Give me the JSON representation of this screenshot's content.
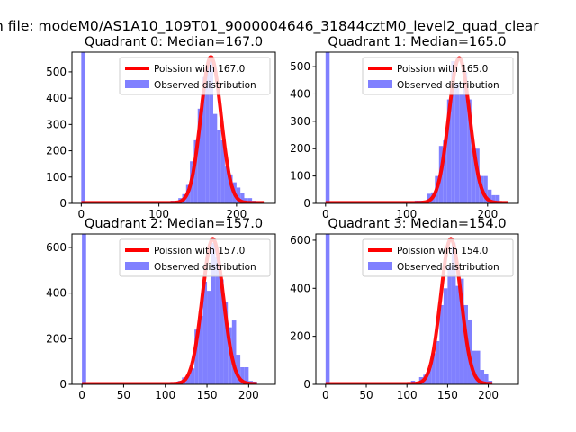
{
  "suptitle": "n file: modeM0/AS1A10_109T01_9000004646_31844cztM0_level2_quad_clear",
  "colors": {
    "poisson": "#ff0000",
    "observed": "#8080ff"
  },
  "chart_data": [
    {
      "type": "bar",
      "title": "Quadrant 0: Median=167.0",
      "xlim": [
        -12,
        250
      ],
      "ylim": [
        0,
        575
      ],
      "xticks": [
        0,
        100,
        200
      ],
      "yticks": [
        0,
        100,
        200,
        300,
        400,
        500
      ],
      "legend": {
        "placement": "top-right",
        "poisson_label": "Poission with 167.0",
        "observed_label": "Observed distribution"
      },
      "poisson_mean": 167.0,
      "poisson_peak": 555,
      "bin_width": 5,
      "bins": [
        0,
        100,
        105,
        110,
        115,
        120,
        125,
        130,
        135,
        140,
        145,
        150,
        155,
        160,
        165,
        170,
        175,
        180,
        185,
        190,
        195,
        200,
        205,
        210,
        215,
        220,
        225,
        230
      ],
      "values": [
        2000,
        3,
        3,
        5,
        10,
        10,
        20,
        35,
        70,
        160,
        240,
        360,
        480,
        520,
        540,
        340,
        280,
        240,
        140,
        110,
        80,
        60,
        40,
        20,
        20,
        10,
        5,
        5
      ]
    },
    {
      "type": "bar",
      "title": "Quadrant 1: Median=165.0",
      "xlim": [
        -12,
        238
      ],
      "ylim": [
        0,
        553
      ],
      "xticks": [
        0,
        100,
        200
      ],
      "yticks": [
        0,
        100,
        200,
        300,
        400,
        500
      ],
      "legend": {
        "placement": "top-right",
        "poisson_label": "Poission with 165.0",
        "observed_label": "Observed distribution"
      },
      "poisson_mean": 165.0,
      "poisson_peak": 530,
      "bin_width": 5,
      "bins": [
        0,
        95,
        100,
        105,
        110,
        115,
        120,
        125,
        130,
        135,
        140,
        145,
        150,
        155,
        160,
        165,
        170,
        175,
        180,
        185,
        190,
        195,
        200,
        205,
        210,
        215,
        220
      ],
      "values": [
        2000,
        5,
        5,
        5,
        10,
        10,
        5,
        35,
        40,
        100,
        210,
        230,
        380,
        520,
        440,
        400,
        480,
        380,
        200,
        200,
        100,
        100,
        50,
        30,
        30,
        5,
        5
      ]
    },
    {
      "type": "bar",
      "title": "Quadrant 2: Median=157.0",
      "xlim": [
        -12,
        232
      ],
      "ylim": [
        0,
        659
      ],
      "xticks": [
        0,
        50,
        100,
        150,
        200
      ],
      "yticks": [
        0,
        200,
        400,
        600
      ],
      "legend": {
        "placement": "top-right",
        "poisson_label": "Poission with 157.0",
        "observed_label": "Observed distribution"
      },
      "poisson_mean": 157.0,
      "poisson_peak": 636,
      "bin_width": 5,
      "bins": [
        0,
        100,
        105,
        110,
        115,
        120,
        125,
        130,
        135,
        140,
        145,
        150,
        155,
        160,
        165,
        170,
        175,
        180,
        185,
        190,
        195,
        200,
        205
      ],
      "values": [
        2000,
        5,
        10,
        10,
        15,
        30,
        40,
        70,
        240,
        300,
        450,
        410,
        620,
        560,
        460,
        360,
        250,
        280,
        130,
        75,
        75,
        15,
        12
      ]
    },
    {
      "type": "bar",
      "title": "Quadrant 3: Median=154.0",
      "xlim": [
        -12,
        237
      ],
      "ylim": [
        0,
        626
      ],
      "xticks": [
        0,
        50,
        100,
        150,
        200
      ],
      "yticks": [
        0,
        200,
        400,
        600
      ],
      "legend": {
        "placement": "top-right",
        "poisson_label": "Poission with 154.0",
        "observed_label": "Observed distribution"
      },
      "poisson_mean": 154.0,
      "poisson_peak": 604,
      "bin_width": 5,
      "bins": [
        0,
        100,
        105,
        110,
        115,
        120,
        125,
        130,
        135,
        140,
        145,
        150,
        155,
        160,
        165,
        170,
        175,
        180,
        185,
        190,
        195,
        200
      ],
      "values": [
        2000,
        5,
        15,
        10,
        30,
        40,
        65,
        130,
        180,
        330,
        400,
        490,
        590,
        410,
        440,
        330,
        270,
        140,
        140,
        60,
        45,
        15
      ]
    }
  ]
}
